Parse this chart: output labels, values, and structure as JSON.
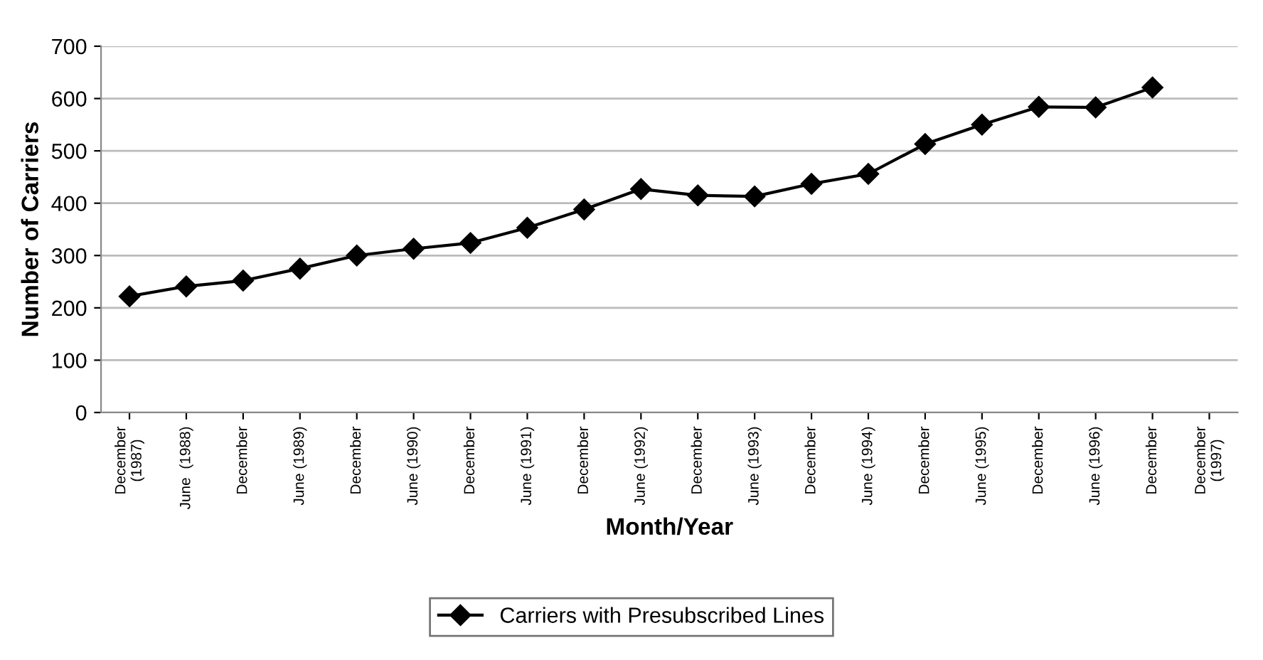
{
  "chart_data": {
    "type": "line",
    "xlabel": "Month/Year",
    "ylabel": "Number of Carriers",
    "categories": [
      "December\n(1987)",
      "June  (1988)",
      "December",
      "June (1989)",
      "December",
      "June (1990)",
      "December",
      "June (1991)",
      "December",
      "June (1992)",
      "December",
      "June (1993)",
      "December",
      "June (1994)",
      "December",
      "June (1995)",
      "December",
      "June (1996)",
      "December",
      "December\n(1997)"
    ],
    "series": [
      {
        "name": "Carriers with Presubscribed Lines",
        "color": "#000000",
        "values": [
          222,
          241,
          252,
          275,
          300,
          313,
          324,
          353,
          388,
          427,
          415,
          413,
          437,
          456,
          513,
          550,
          584,
          583,
          621,
          null
        ]
      }
    ],
    "ylim": [
      0,
      700
    ],
    "yticks": [
      0,
      100,
      200,
      300,
      400,
      500,
      600,
      700
    ],
    "grid": "y",
    "legend": "bottom",
    "marker": "diamond",
    "line_style": "solid"
  }
}
